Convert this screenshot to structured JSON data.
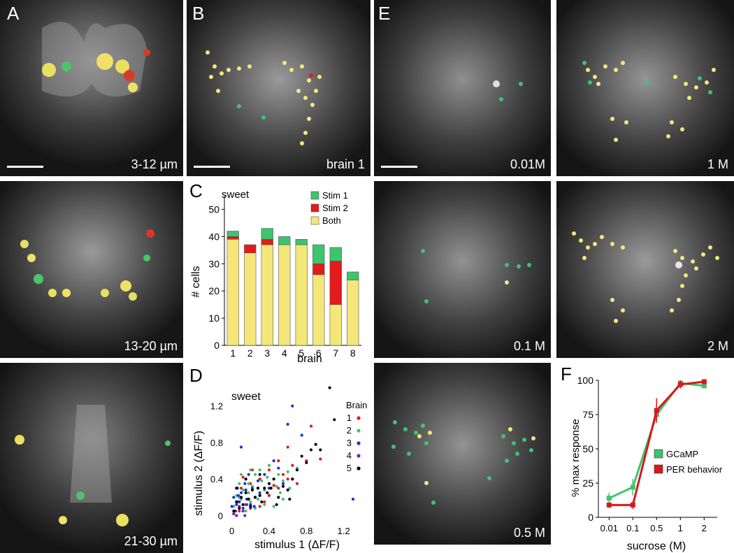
{
  "panels": {
    "A": {
      "label": "A",
      "captions": [
        "3-12 µm",
        "13-20 µm",
        "21-30 µm"
      ]
    },
    "B": {
      "label": "B",
      "caption": "brain 1"
    },
    "C": {
      "label": "C"
    },
    "D": {
      "label": "D"
    },
    "E": {
      "label": "E",
      "captions": [
        "0.01M",
        "1 M",
        "0.1 M",
        "2 M",
        "0.5 M"
      ]
    },
    "F": {
      "label": "F"
    }
  },
  "colors": {
    "stim1": "#3dc46e",
    "stim2": "#e41a1c",
    "both": "#f5e67a",
    "gcamp": "#3dc46e",
    "per": "#d7191c"
  },
  "chart_data": [
    {
      "id": "C",
      "type": "bar",
      "stacked": true,
      "title": "sweet",
      "xlabel": "brain",
      "ylabel": "# cells",
      "ylim": [
        0,
        55
      ],
      "yticks": [
        0,
        10,
        20,
        30,
        40,
        50
      ],
      "categories": [
        "1",
        "2",
        "3",
        "4",
        "5",
        "6",
        "7",
        "8"
      ],
      "series": [
        {
          "name": "Both",
          "color": "#f5e67a",
          "values": [
            39,
            34,
            37,
            37,
            37,
            26,
            15,
            24
          ]
        },
        {
          "name": "Stim 2",
          "color": "#e41a1c",
          "values": [
            1,
            3,
            2,
            0,
            0,
            4,
            16,
            0
          ]
        },
        {
          "name": "Stim 1",
          "color": "#3dc46e",
          "values": [
            2,
            0,
            4,
            3,
            2,
            7,
            5,
            3
          ]
        }
      ],
      "legend": [
        "Stim 1",
        "Stim 2",
        "Both"
      ],
      "legend_position": "top-right"
    },
    {
      "id": "D",
      "type": "scatter",
      "title": "sweet",
      "xlabel": "stimulus 1 (ΔF/F)",
      "ylabel": "stimulus 2 (ΔF/F)",
      "xlim": [
        -0.05,
        1.45
      ],
      "ylim": [
        -0.05,
        1.42
      ],
      "xticks": [
        "0",
        "0.4",
        "0.8",
        "1.2"
      ],
      "xtick_values": [
        0,
        0.4,
        0.8,
        1.2
      ],
      "yticks": [
        "0",
        "0.4",
        "0.8",
        "1.2"
      ],
      "ytick_values": [
        0,
        0.4,
        0.8,
        1.2
      ],
      "legend_title": "Brain",
      "series": [
        {
          "name": "1",
          "color": "#e41a1c",
          "points": [
            [
              0.05,
              0.15
            ],
            [
              0.1,
              0.3
            ],
            [
              0.15,
              0.12
            ],
            [
              0.2,
              0.35
            ],
            [
              0.25,
              0.2
            ],
            [
              0.3,
              0.4
            ],
            [
              0.35,
              0.28
            ],
            [
              0.4,
              0.5
            ],
            [
              0.45,
              0.33
            ],
            [
              0.5,
              0.6
            ],
            [
              0.55,
              0.45
            ],
            [
              0.6,
              0.75
            ],
            [
              0.65,
              0.55
            ],
            [
              0.7,
              0.35
            ],
            [
              0.8,
              0.6
            ],
            [
              0.85,
              0.98
            ],
            [
              0.95,
              0.62
            ],
            [
              0.3,
              0.1
            ],
            [
              0.22,
              0.5
            ],
            [
              0.4,
              0.22
            ],
            [
              0.12,
              0.42
            ],
            [
              0.5,
              0.3
            ],
            [
              0.6,
              0.4
            ],
            [
              0.08,
              0.05
            ],
            [
              0.35,
              0.15
            ]
          ]
        },
        {
          "name": "2",
          "color": "#3dc46e",
          "points": [
            [
              0.02,
              0.1
            ],
            [
              0.05,
              0.22
            ],
            [
              0.08,
              0.35
            ],
            [
              0.1,
              0.18
            ],
            [
              0.12,
              0.28
            ],
            [
              0.15,
              0.4
            ],
            [
              0.18,
              0.25
            ],
            [
              0.2,
              0.15
            ],
            [
              0.22,
              0.32
            ],
            [
              0.25,
              0.45
            ],
            [
              0.28,
              0.3
            ],
            [
              0.3,
              0.22
            ],
            [
              0.32,
              0.38
            ],
            [
              0.35,
              0.28
            ],
            [
              0.38,
              0.42
            ],
            [
              0.4,
              0.35
            ],
            [
              0.42,
              0.3
            ],
            [
              0.45,
              0.4
            ],
            [
              0.48,
              0.32
            ],
            [
              0.5,
              0.45
            ],
            [
              0.55,
              0.38
            ],
            [
              0.6,
              0.48
            ],
            [
              0.65,
              0.4
            ],
            [
              0.7,
              0.52
            ],
            [
              0.15,
              0.05
            ],
            [
              0.25,
              0.08
            ],
            [
              0.05,
              0.3
            ],
            [
              0.1,
              0.45
            ],
            [
              0.2,
              0.5
            ],
            [
              0.35,
              0.12
            ],
            [
              0.45,
              0.1
            ],
            [
              0.55,
              0.18
            ],
            [
              0.3,
              0.5
            ],
            [
              0.4,
              0.55
            ],
            [
              0.12,
              0.12
            ],
            [
              0.18,
              0.35
            ],
            [
              0.28,
              0.18
            ],
            [
              0.52,
              0.25
            ],
            [
              0.62,
              0.3
            ],
            [
              0.08,
              0.2
            ]
          ]
        },
        {
          "name": "3",
          "color": "#1f2de0",
          "points": [
            [
              0.0,
              0.1
            ],
            [
              0.02,
              0.2
            ],
            [
              0.04,
              0.05
            ],
            [
              0.06,
              0.3
            ],
            [
              0.08,
              0.15
            ],
            [
              0.1,
              0.25
            ],
            [
              0.12,
              0.08
            ],
            [
              0.14,
              0.35
            ],
            [
              0.16,
              0.18
            ],
            [
              0.18,
              0.45
            ],
            [
              0.2,
              0.12
            ],
            [
              0.22,
              0.3
            ],
            [
              0.25,
              0.2
            ],
            [
              0.28,
              0.38
            ],
            [
              0.3,
              0.25
            ],
            [
              0.35,
              0.45
            ],
            [
              0.4,
              0.3
            ],
            [
              0.45,
              0.6
            ],
            [
              0.5,
              0.52
            ],
            [
              0.55,
              0.35
            ],
            [
              0.6,
              1.0
            ],
            [
              0.65,
              1.2
            ],
            [
              0.75,
              0.88
            ],
            [
              1.3,
              0.18
            ],
            [
              0.1,
              0.75
            ],
            [
              0.02,
              0.02
            ],
            [
              0.05,
              0.12
            ],
            [
              0.07,
              0.22
            ],
            [
              0.15,
              0.28
            ],
            [
              0.24,
              0.1
            ]
          ]
        },
        {
          "name": "4",
          "color": "#7b1fa2",
          "points": [
            [
              0.02,
              0.02
            ],
            [
              0.05,
              0.0
            ],
            [
              0.08,
              0.1
            ],
            [
              0.12,
              0.05
            ],
            [
              0.16,
              0.12
            ],
            [
              0.2,
              0.08
            ],
            [
              0.06,
              0.15
            ],
            [
              0.1,
              0.2
            ],
            [
              0.14,
              0.0
            ],
            [
              0.18,
              0.18
            ]
          ]
        },
        {
          "name": "5",
          "color": "#000000",
          "points": [
            [
              0.02,
              0.05
            ],
            [
              0.05,
              0.15
            ],
            [
              0.08,
              0.08
            ],
            [
              0.1,
              0.2
            ],
            [
              0.12,
              0.12
            ],
            [
              0.15,
              0.25
            ],
            [
              0.18,
              0.18
            ],
            [
              0.2,
              0.1
            ],
            [
              0.22,
              0.28
            ],
            [
              0.25,
              0.2
            ],
            [
              0.28,
              0.3
            ],
            [
              0.3,
              0.22
            ],
            [
              0.32,
              0.15
            ],
            [
              0.35,
              0.3
            ],
            [
              0.38,
              0.25
            ],
            [
              0.4,
              0.35
            ],
            [
              0.42,
              0.3
            ],
            [
              0.45,
              0.4
            ],
            [
              0.5,
              0.2
            ],
            [
              0.55,
              0.32
            ],
            [
              0.6,
              0.28
            ],
            [
              0.65,
              0.4
            ],
            [
              0.7,
              0.5
            ],
            [
              0.75,
              0.65
            ],
            [
              0.8,
              0.58
            ],
            [
              0.85,
              0.72
            ],
            [
              0.9,
              0.78
            ],
            [
              0.95,
              0.72
            ],
            [
              1.05,
              1.4
            ],
            [
              1.1,
              1.05
            ],
            [
              0.48,
              0.12
            ],
            [
              0.62,
              0.18
            ],
            [
              0.15,
              0.4
            ],
            [
              0.3,
              0.45
            ],
            [
              0.05,
              0.3
            ]
          ]
        }
      ]
    },
    {
      "id": "F",
      "type": "line",
      "xlabel": "sucrose (M)",
      "ylabel": "% max response",
      "categories": [
        "0.01",
        "0.1",
        "0.5",
        "1",
        "2"
      ],
      "ylim": [
        0,
        100
      ],
      "yticks": [
        0,
        25,
        50,
        75,
        100
      ],
      "legend_position": "lower-right",
      "series": [
        {
          "name": "GCaMP",
          "color": "#3dc46e",
          "values": [
            14,
            22,
            75,
            98,
            96
          ],
          "errors": [
            4,
            6,
            6,
            2,
            2
          ]
        },
        {
          "name": "PER behavior",
          "color": "#d7191c",
          "values": [
            9,
            9,
            78,
            97,
            99
          ],
          "errors": [
            2,
            3,
            9,
            3,
            1
          ]
        }
      ]
    }
  ]
}
